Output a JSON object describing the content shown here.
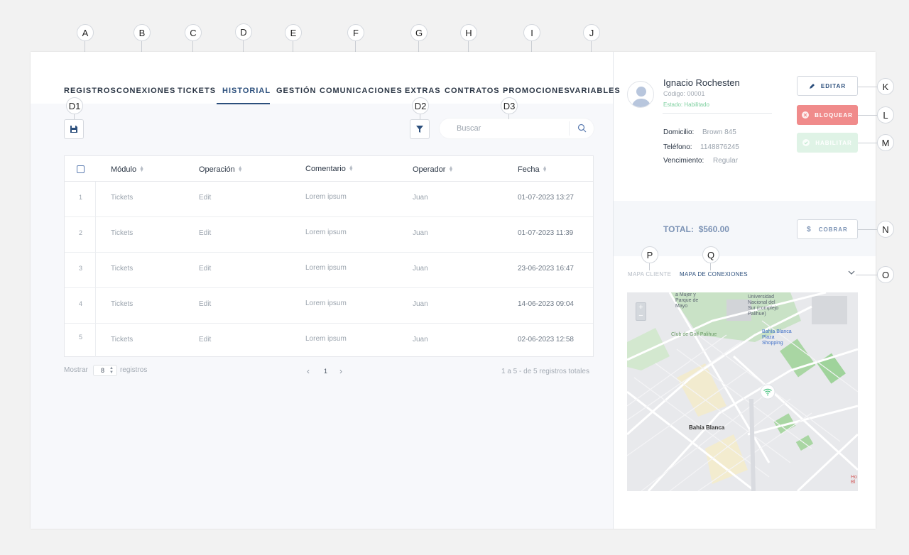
{
  "callouts": {
    "A": "A",
    "B": "B",
    "C": "C",
    "D": "D",
    "E": "E",
    "F": "F",
    "G": "G",
    "H": "H",
    "I": "I",
    "J": "J",
    "K": "K",
    "L": "L",
    "M": "M",
    "N": "N",
    "O": "O",
    "P": "P",
    "Q": "Q",
    "D1": "D1",
    "D2": "D2",
    "D3": "D3"
  },
  "tabs": [
    {
      "label": "REGISTROS"
    },
    {
      "label": "CONEXIONES"
    },
    {
      "label": "TICKETS"
    },
    {
      "label": "HISTORIAL",
      "active": true
    },
    {
      "label": "GESTIÓN"
    },
    {
      "label": "COMUNICACIONES"
    },
    {
      "label": "EXTRAS"
    },
    {
      "label": "CONTRATOS"
    },
    {
      "label": "PROMOCIONES"
    },
    {
      "label": "VARIABLES"
    }
  ],
  "toolbar": {
    "save_icon": "save-icon",
    "filter_icon": "filter-icon",
    "search_placeholder": "Buscar",
    "search_icon": "search-icon"
  },
  "table": {
    "columns": [
      "Módulo",
      "Operación",
      "Comentario",
      "Operador",
      "Fecha"
    ],
    "rows": [
      {
        "n": "1",
        "modulo": "Tickets",
        "operacion": "Edit",
        "comentario": "Lorem ipsum",
        "operador": "Juan",
        "fecha": "01-07-2023 13:27"
      },
      {
        "n": "2",
        "modulo": "Tickets",
        "operacion": "Edit",
        "comentario": "Lorem ipsum",
        "operador": "Juan",
        "fecha": "01-07-2023 11:39"
      },
      {
        "n": "3",
        "modulo": "Tickets",
        "operacion": "Edit",
        "comentario": "Lorem ipsum",
        "operador": "Juan",
        "fecha": "23-06-2023 16:47"
      },
      {
        "n": "4",
        "modulo": "Tickets",
        "operacion": "Edit",
        "comentario": "Lorem ipsum",
        "operador": "Juan",
        "fecha": "14-06-2023 09:04"
      },
      {
        "n": "5",
        "modulo": "Tickets",
        "operacion": "Edit",
        "comentario": "Lorem ipsum",
        "operador": "Juan",
        "fecha": "02-06-2023 12:58"
      }
    ]
  },
  "pagination": {
    "show_label": "Mostrar",
    "show_value": "8",
    "records_label": "registros",
    "current_page": "1",
    "summary": "1 a 5 - de 5 registros totales"
  },
  "client": {
    "name": "Ignacio Rochesten",
    "code": "Código: 00001",
    "state": "Estado: Habilitado",
    "domicilio_label": "Domicilio:",
    "domicilio_value": "Brown 845",
    "telefono_label": "Teléfono:",
    "telefono_value": "1148876245",
    "vencimiento_label": "Vencimiento:",
    "vencimiento_value": "Regular"
  },
  "actions": {
    "edit": "EDITAR",
    "block": "BLOQUEAR",
    "enable": "HABILITAR",
    "charge": "COBRAR"
  },
  "total": {
    "label": "TOTAL:",
    "value": "$560.00"
  },
  "map_tabs": {
    "client": "MAPA CLIENTE",
    "connections": "MAPA DE CONEXIONES"
  },
  "map": {
    "labels": {
      "university": "Universidad Nacional del Sur (complejo Palihue)",
      "park": "a Mujer y Parque de Mayo",
      "golf": "Club de Golf Palihue",
      "shopping": "Bahía Blanca Plaza Shopping",
      "city": "Bahía Blanca",
      "hotel": "Ho Bl"
    }
  },
  "colors": {
    "accent": "#2c4f7c",
    "danger": "#f08b8b",
    "success": "#7fd0a0"
  }
}
